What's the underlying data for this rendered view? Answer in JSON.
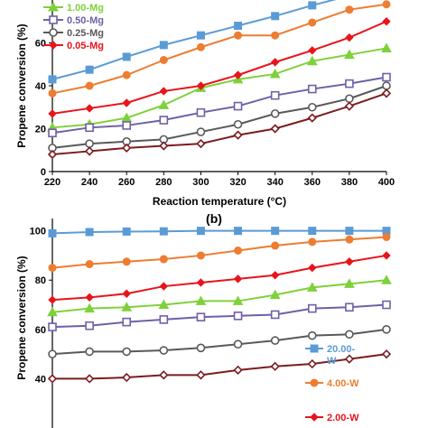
{
  "charts": [
    {
      "chart_data": {
        "type": "line",
        "panel_label": "",
        "xlabel": "Reaction temperature (°C)",
        "ylabel": "Propene conversion (%)",
        "xlim": [
          220,
          400
        ],
        "ylim": [
          0,
          80
        ],
        "x_ticks": [
          220,
          240,
          260,
          280,
          300,
          320,
          340,
          360,
          380,
          400
        ],
        "y_ticks": [
          0,
          20,
          40,
          60
        ],
        "legend_position": "top-left",
        "x": [
          220,
          240,
          260,
          280,
          300,
          320,
          340,
          360,
          380,
          400
        ],
        "series": [
          {
            "name": "",
            "color": "#5b9bd5",
            "marker": "square",
            "values": [
              43,
              47.5,
              53.5,
              59,
              63.5,
              68,
              72.5,
              77.5,
              82,
              86
            ]
          },
          {
            "name": "",
            "color": "#ed7d31",
            "marker": "circle",
            "values": [
              36.5,
              40,
              45,
              52,
              58,
              63.5,
              63.5,
              69.5,
              75.5,
              78
            ]
          },
          {
            "name": "1.00-Mg",
            "color": "#7fd13b",
            "marker": "triangle",
            "values": [
              20.5,
              22,
              25,
              31,
              39,
              43,
              45.5,
              51.5,
              54.5,
              57.5
            ]
          },
          {
            "name": "0.50-Mg",
            "color": "#7060a8",
            "marker": "square-open",
            "values": [
              18,
              20.5,
              21.5,
              24,
              27.5,
              30.5,
              35.5,
              38.5,
              41,
              44
            ]
          },
          {
            "name": "0.25-Mg",
            "color": "#595959",
            "marker": "circle-open",
            "values": [
              11,
              13,
              14,
              15,
              18.5,
              22,
              27,
              30,
              34,
              40
            ]
          },
          {
            "name": "0.05-Mg",
            "color": "#e8141c",
            "marker": "diamond",
            "values": [
              27,
              29.5,
              32,
              37.5,
              40,
              45,
              51,
              56.5,
              62.5,
              70
            ]
          },
          {
            "name": "",
            "color": "#7b1c20",
            "marker": "diamond-open",
            "values": [
              8,
              9.5,
              11,
              12,
              13,
              17,
              20,
              25,
              30.5,
              36.5
            ]
          }
        ]
      }
    },
    {
      "chart_data": {
        "type": "line",
        "panel_label": "(b)",
        "xlabel": "",
        "ylabel": "Propene conversion (%)",
        "ylim": [
          20,
          105
        ],
        "y_ticks": [
          40,
          60,
          80,
          100
        ],
        "x_ticks": [],
        "x": [
          220,
          240,
          260,
          280,
          300,
          320,
          340,
          360,
          380,
          400
        ],
        "xlim": [
          220,
          400
        ],
        "legend_position": "bottom-right",
        "series": [
          {
            "name": "20.00-W",
            "color": "#5b9bd5",
            "marker": "square",
            "values": [
              99,
              99.5,
              99.7,
              99.8,
              100,
              100,
              100,
              100,
              100,
              100
            ]
          },
          {
            "name": "4.00-W",
            "color": "#ed7d31",
            "marker": "circle",
            "values": [
              85,
              86.5,
              87.5,
              88.5,
              90,
              92,
              94,
              95.5,
              96.5,
              97.5
            ]
          },
          {
            "name": "",
            "color": "#7fd13b",
            "marker": "triangle",
            "values": [
              67,
              68.5,
              69,
              70,
              71.5,
              71.5,
              74,
              77,
              78.5,
              80
            ]
          },
          {
            "name": "",
            "color": "#7060a8",
            "marker": "square-open",
            "values": [
              61,
              61.5,
              63,
              64,
              65,
              65.5,
              66,
              68.5,
              69,
              70
            ]
          },
          {
            "name": "",
            "color": "#595959",
            "marker": "circle-open",
            "values": [
              50,
              51,
              51,
              51.5,
              52.5,
              54,
              55.5,
              57.5,
              58,
              60
            ]
          },
          {
            "name": "2.00-W",
            "color": "#e8141c",
            "marker": "diamond",
            "values": [
              72,
              73,
              74.5,
              77.5,
              79,
              80.5,
              82,
              85,
              87.5,
              90
            ]
          },
          {
            "name": "",
            "color": "#7b1c20",
            "marker": "diamond-open",
            "values": [
              40,
              40,
              40.5,
              41.5,
              41.5,
              43.5,
              45,
              46,
              48,
              50
            ]
          }
        ]
      }
    }
  ]
}
